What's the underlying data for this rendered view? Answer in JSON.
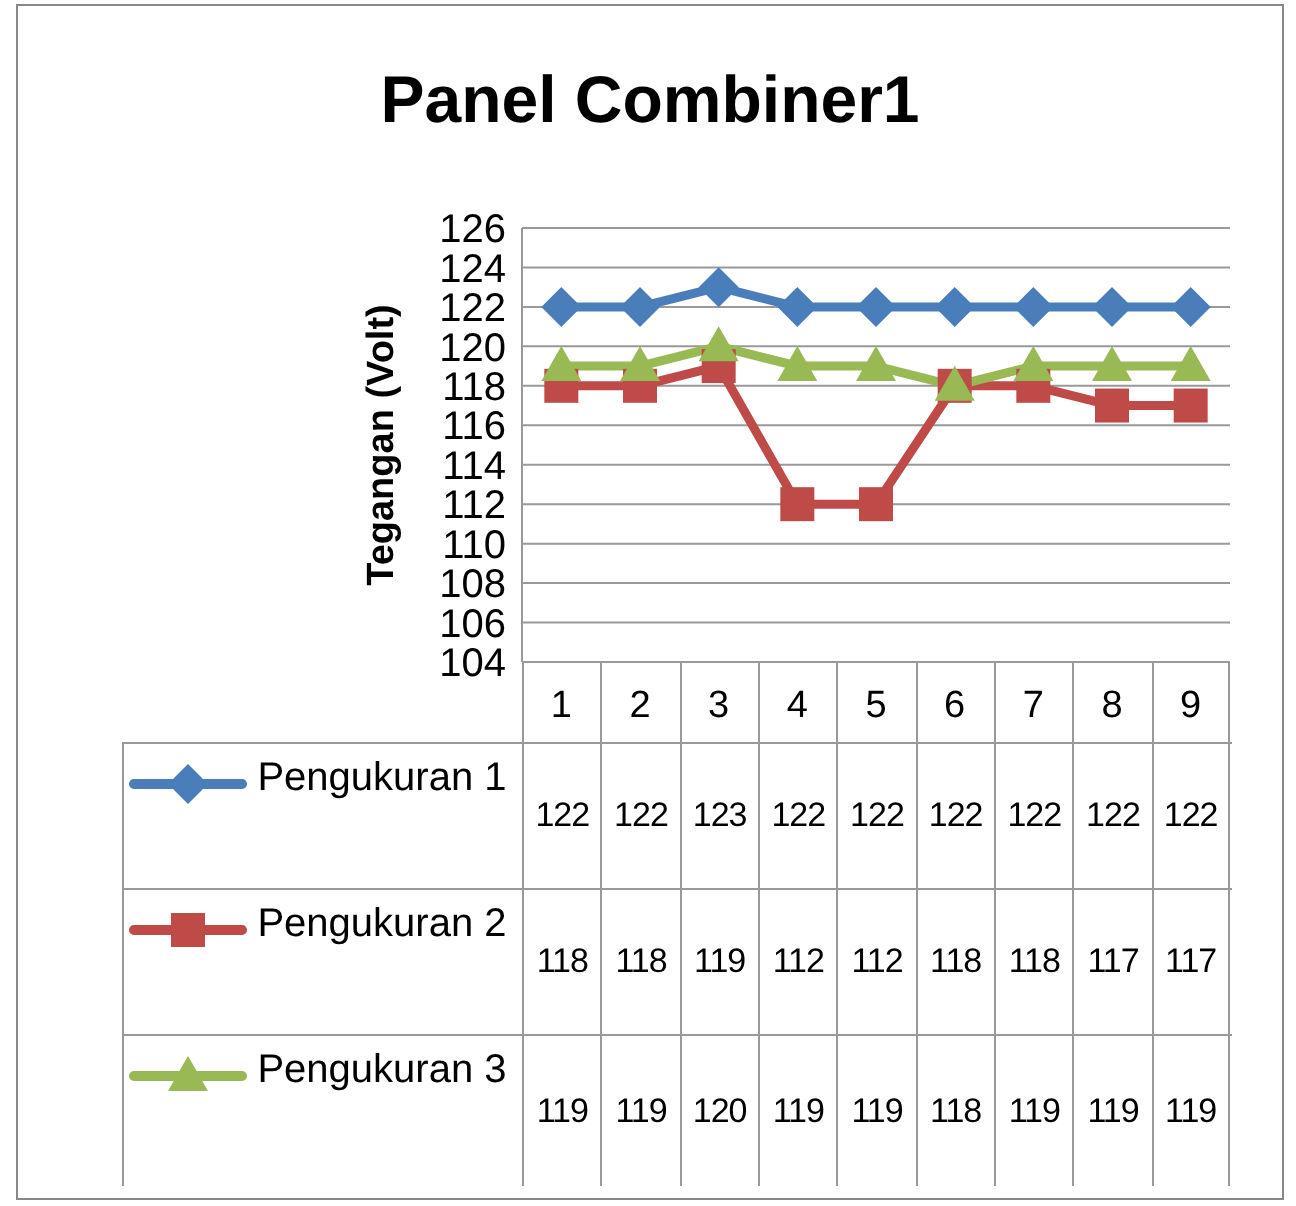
{
  "chart_data": {
    "type": "line",
    "title": "Panel Combiner1",
    "ylabel": "Tegangan (Volt)",
    "categories": [
      "1",
      "2",
      "3",
      "4",
      "5",
      "6",
      "7",
      "8",
      "9"
    ],
    "series": [
      {
        "name": "Pengukuran 1",
        "color": "#4a7ebb",
        "marker": "diamond",
        "values": [
          122,
          122,
          123,
          122,
          122,
          122,
          122,
          122,
          122
        ]
      },
      {
        "name": "Pengukuran 2",
        "color": "#be4b48",
        "marker": "square",
        "values": [
          118,
          118,
          119,
          112,
          112,
          118,
          118,
          117,
          117
        ]
      },
      {
        "name": "Pengukuran 3",
        "color": "#98b954",
        "marker": "triangle",
        "values": [
          119,
          119,
          120,
          119,
          119,
          118,
          119,
          119,
          119
        ]
      }
    ],
    "ylim": [
      104,
      126
    ],
    "yticks": [
      104,
      106,
      108,
      110,
      112,
      114,
      116,
      118,
      120,
      122,
      124,
      126
    ],
    "grid": "y",
    "legend": "bottom",
    "data_labels": true
  }
}
